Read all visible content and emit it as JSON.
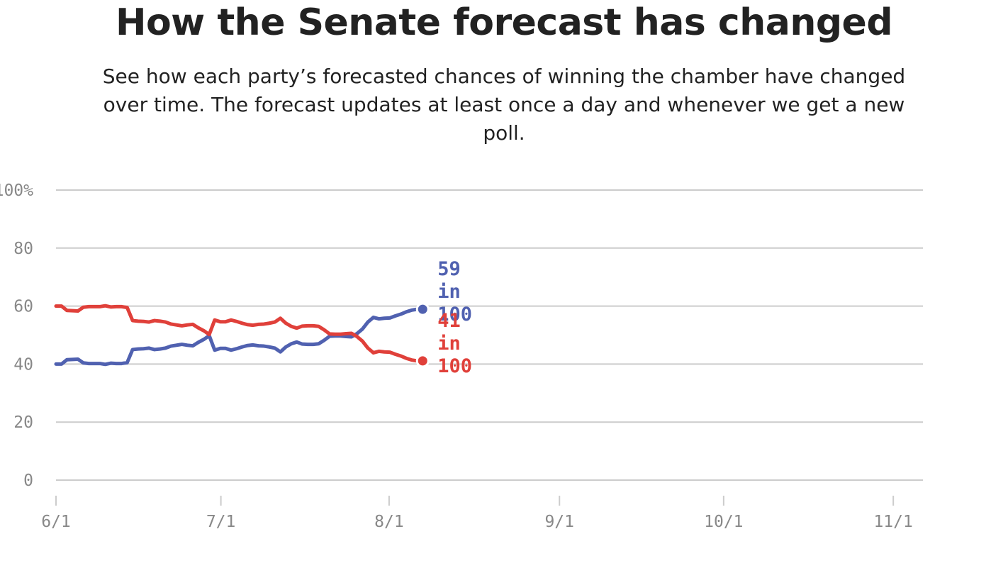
{
  "title": "How the Senate forecast has changed",
  "subtitle": "See how each party’s forecasted chances of winning the chamber have changed over time. The forecast updates at least once a day and whenever we get a new poll.",
  "chart_data": {
    "type": "line",
    "title": "How the Senate forecast has changed",
    "xlabel": "",
    "ylabel": "",
    "x_tick_labels": [
      "6/1",
      "7/1",
      "8/1",
      "9/1",
      "10/1",
      "11/1"
    ],
    "y_tick_labels": [
      "0",
      "20",
      "40",
      "60",
      "80",
      "100%"
    ],
    "y_ticks": [
      0,
      20,
      40,
      60,
      80,
      100
    ],
    "ylim": [
      0,
      100
    ],
    "x_range_days_from_june_1": [
      0,
      158
    ],
    "grid": true,
    "legend": "none",
    "x": [
      "6/1",
      "6/2",
      "6/3",
      "6/4",
      "6/5",
      "6/6",
      "6/7",
      "6/8",
      "6/9",
      "6/10",
      "6/11",
      "6/12",
      "6/13",
      "6/14",
      "6/15",
      "6/16",
      "6/17",
      "6/18",
      "6/19",
      "6/20",
      "6/21",
      "6/22",
      "6/23",
      "6/24",
      "6/25",
      "6/26",
      "6/27",
      "6/28",
      "6/29",
      "6/30",
      "7/1",
      "7/2",
      "7/3",
      "7/4",
      "7/5",
      "7/6",
      "7/7",
      "7/8",
      "7/9",
      "7/10",
      "7/11",
      "7/12",
      "7/13",
      "7/14",
      "7/15",
      "7/16",
      "7/17",
      "7/18",
      "7/19",
      "7/20",
      "7/21",
      "7/22",
      "7/23",
      "7/24",
      "7/25",
      "7/26",
      "7/27",
      "7/28",
      "7/29",
      "7/30",
      "7/31",
      "8/1",
      "8/2",
      "8/3",
      "8/4",
      "8/5",
      "8/6",
      "8/7"
    ],
    "series": [
      {
        "name": "",
        "color": "#5061b0",
        "end_label": [
          "59",
          "in",
          "100"
        ],
        "values": [
          40.0,
          40.0,
          41.5,
          41.6,
          41.7,
          40.4,
          40.2,
          40.2,
          40.2,
          39.9,
          40.3,
          40.2,
          40.2,
          40.5,
          45.0,
          45.2,
          45.3,
          45.5,
          45.0,
          45.2,
          45.5,
          46.2,
          46.5,
          46.8,
          46.5,
          46.3,
          47.5,
          48.5,
          49.8,
          44.8,
          45.4,
          45.4,
          44.8,
          45.3,
          45.9,
          46.4,
          46.6,
          46.3,
          46.2,
          45.9,
          45.5,
          44.2,
          45.9,
          47.0,
          47.6,
          46.9,
          46.8,
          46.8,
          47.0,
          48.2,
          49.6,
          49.7,
          49.7,
          49.5,
          49.4,
          50.5,
          52.1,
          54.5,
          56.1,
          55.6,
          55.8,
          55.9,
          56.6,
          57.2,
          58.0,
          58.6,
          58.9,
          58.9
        ]
      },
      {
        "name": "",
        "color": "#e0403a",
        "end_label": [
          "41",
          "in",
          "100"
        ],
        "values": [
          60.0,
          60.0,
          58.5,
          58.4,
          58.3,
          59.6,
          59.8,
          59.8,
          59.8,
          60.1,
          59.7,
          59.8,
          59.8,
          59.5,
          55.0,
          54.8,
          54.7,
          54.5,
          55.0,
          54.8,
          54.5,
          53.8,
          53.5,
          53.2,
          53.5,
          53.7,
          52.5,
          51.5,
          50.2,
          55.2,
          54.6,
          54.6,
          55.2,
          54.7,
          54.1,
          53.6,
          53.4,
          53.7,
          53.8,
          54.1,
          54.5,
          55.8,
          54.1,
          53.0,
          52.4,
          53.1,
          53.2,
          53.2,
          53.0,
          51.8,
          50.4,
          50.3,
          50.3,
          50.5,
          50.6,
          49.5,
          47.9,
          45.5,
          43.9,
          44.4,
          44.2,
          44.1,
          43.4,
          42.8,
          42.0,
          41.4,
          41.1,
          41.1
        ]
      }
    ]
  }
}
